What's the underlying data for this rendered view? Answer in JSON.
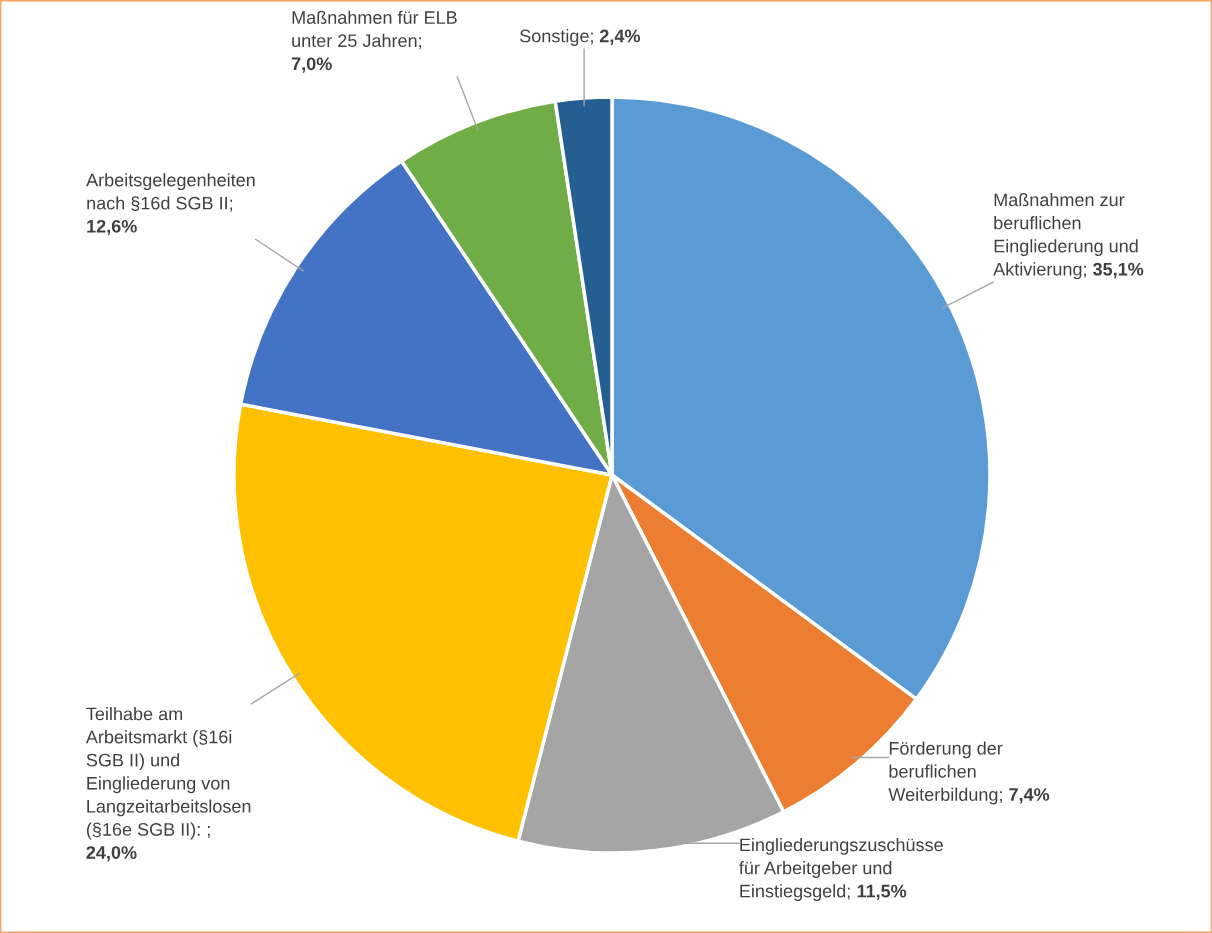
{
  "chart_data": {
    "type": "pie",
    "categories": [
      "Maßnahmen zur\nberuflichen\nEingliederung und\nAktivierung",
      "Förderung der\nberuflichen\nWeiterbildung",
      "Eingliederungszuschüsse\nfür Arbeitgeber und\nEinstiegsgeld",
      "Teilhabe am\nArbeitsmarkt (§16i\nSGB II) und\nEingliederung von\nLangzeitarbeitslosen\n(§16e SGB II)",
      "Arbeitsgelegenheiten\nnach §16d SGB II",
      "Maßnahmen für ELB\nunter 25 Jahren",
      "Sonstige"
    ],
    "values": [
      35.1,
      7.4,
      11.5,
      24.0,
      12.6,
      7.0,
      2.4
    ],
    "value_labels": [
      "; 35,1%",
      "; 7,4%",
      "; 11,5%",
      ": ; 24,0%",
      "; 12,6%",
      "; 7,0%",
      "; 2,4%"
    ],
    "colors": [
      "#5b9bd5",
      "#ed7d31",
      "#a5a5a5",
      "#ffc000",
      "#4472c4",
      "#70ad47",
      "#255e91"
    ],
    "legend": false
  }
}
